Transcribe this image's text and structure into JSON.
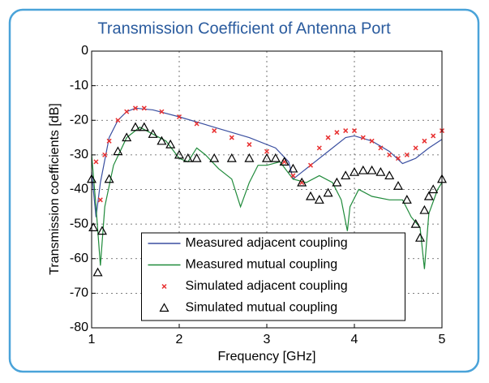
{
  "chart_data": {
    "type": "line",
    "title": "Transmission Coefficient of Antenna Port",
    "xlabel": "Frequency [GHz]",
    "ylabel": "Transmission coefficients [dB]",
    "xlim": [
      1,
      5
    ],
    "xticks": [
      1,
      2,
      3,
      4,
      5
    ],
    "ylim": [
      -80,
      0
    ],
    "yticks": [
      0,
      -10,
      -20,
      -30,
      -40,
      -50,
      -60,
      -70,
      -80
    ],
    "grid": true,
    "legend": "lower center",
    "series": [
      {
        "name": "Measured adjacent coupling",
        "color": "#3a4fa0",
        "marker": "none",
        "x": [
          1.0,
          1.05,
          1.1,
          1.2,
          1.3,
          1.4,
          1.5,
          1.7,
          2.0,
          2.4,
          2.8,
          3.1,
          3.25,
          3.3,
          3.4,
          3.5,
          3.7,
          3.9,
          4.0,
          4.2,
          4.4,
          4.55,
          4.7,
          4.85,
          5.0
        ],
        "values": [
          -35,
          -48,
          -38,
          -25,
          -20,
          -17.5,
          -16.5,
          -17,
          -19,
          -22,
          -25,
          -28,
          -32,
          -37,
          -35,
          -33,
          -29,
          -25,
          -24.5,
          -26,
          -29,
          -32.5,
          -31,
          -28,
          -25.5
        ]
      },
      {
        "name": "Measured mutual coupling",
        "color": "#1f8a3a",
        "marker": "none",
        "x": [
          1.0,
          1.05,
          1.1,
          1.15,
          1.25,
          1.4,
          1.55,
          1.7,
          1.85,
          2.0,
          2.1,
          2.2,
          2.3,
          2.45,
          2.6,
          2.7,
          2.8,
          2.9,
          3.0,
          3.15,
          3.3,
          3.45,
          3.6,
          3.75,
          3.85,
          3.92,
          3.95,
          4.05,
          4.2,
          4.4,
          4.55,
          4.65,
          4.75,
          4.8,
          4.85,
          4.95,
          5.0
        ],
        "values": [
          -30,
          -45,
          -62,
          -45,
          -33,
          -25,
          -22,
          -24,
          -26,
          -31,
          -32,
          -28,
          -30,
          -34,
          -37,
          -45,
          -38,
          -33,
          -33,
          -32,
          -37,
          -38,
          -36,
          -38,
          -43,
          -52,
          -45,
          -40,
          -42,
          -43,
          -43,
          -48,
          -51,
          -63,
          -47,
          -40,
          -38
        ]
      },
      {
        "name": "Simulated adjacent coupling",
        "color": "#e83030",
        "marker": "x",
        "x": [
          1.05,
          1.1,
          1.15,
          1.2,
          1.3,
          1.4,
          1.5,
          1.6,
          1.8,
          2.0,
          2.2,
          2.4,
          2.6,
          2.8,
          3.0,
          3.2,
          3.3,
          3.4,
          3.5,
          3.6,
          3.7,
          3.8,
          3.9,
          4.0,
          4.1,
          4.2,
          4.3,
          4.4,
          4.5,
          4.6,
          4.7,
          4.8,
          4.9,
          5.0
        ],
        "values": [
          -32,
          -43,
          -30,
          -26,
          -20,
          -17.5,
          -16.5,
          -16.5,
          -17.5,
          -19,
          -21,
          -23,
          -25,
          -27,
          -29,
          -32,
          -36,
          -38,
          -33,
          -28,
          -25,
          -23.5,
          -23,
          -23,
          -25,
          -26,
          -28,
          -30,
          -31,
          -30,
          -28,
          -26,
          -24.5,
          -23
        ]
      },
      {
        "name": "Simulated mutual coupling",
        "color": "#000000",
        "marker": "triangle",
        "x": [
          1.0,
          1.02,
          1.07,
          1.12,
          1.2,
          1.3,
          1.4,
          1.5,
          1.6,
          1.7,
          1.8,
          1.9,
          2.0,
          2.1,
          2.2,
          2.4,
          2.6,
          2.8,
          3.0,
          3.1,
          3.2,
          3.3,
          3.4,
          3.5,
          3.6,
          3.7,
          3.8,
          3.9,
          4.0,
          4.1,
          4.2,
          4.3,
          4.4,
          4.5,
          4.6,
          4.7,
          4.75,
          4.8,
          4.85,
          4.9,
          5.0
        ],
        "values": [
          -37,
          -51,
          -64,
          -52,
          -37,
          -29,
          -25,
          -22,
          -22,
          -24,
          -26,
          -27,
          -30,
          -31,
          -31,
          -31,
          -31,
          -31,
          -31,
          -31,
          -32,
          -34,
          -38,
          -42,
          -43,
          -41,
          -38,
          -36,
          -35,
          -34.5,
          -34.5,
          -35,
          -36,
          -39,
          -43,
          -50,
          -54,
          -46,
          -42,
          -40,
          -37
        ]
      }
    ]
  }
}
